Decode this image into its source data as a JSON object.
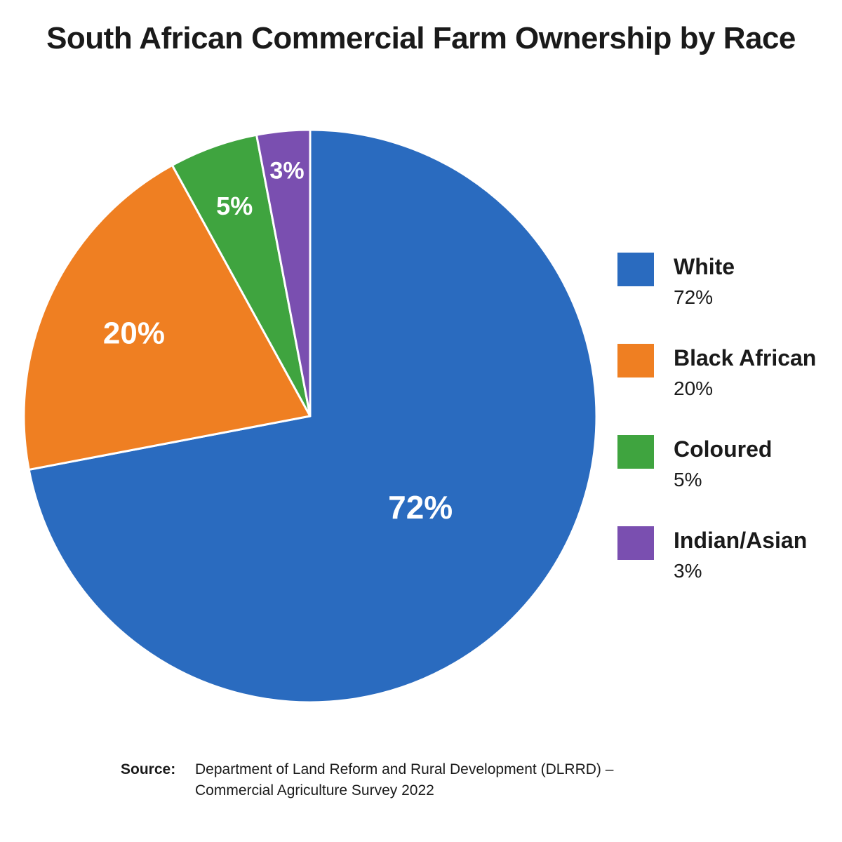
{
  "chart_data": {
    "type": "pie",
    "title": "South African Commercial Farm Ownership by Race",
    "slices": [
      {
        "label": "White",
        "value": 72,
        "display": "72%",
        "color": "#2a6bbf"
      },
      {
        "label": "Black African",
        "value": 20,
        "display": "20%",
        "color": "#ef7f22"
      },
      {
        "label": "Coloured",
        "value": 5,
        "display": "5%",
        "color": "#3fa43f"
      },
      {
        "label": "Indian/Asian",
        "value": 3,
        "display": "3%",
        "color": "#7a4fb0"
      }
    ],
    "legend_position": "right"
  },
  "source": {
    "label": "Source:",
    "line1": "Department of Land Reform and Rural Development (DLRRD) –",
    "line2": "Commercial Agriculture Survey 2022"
  }
}
